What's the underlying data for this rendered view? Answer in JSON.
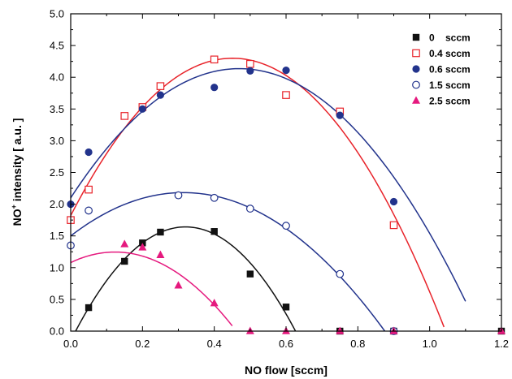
{
  "chart_data": {
    "type": "scatter",
    "xlabel": "NO flow [sccm]",
    "ylabel_main": "NO",
    "ylabel_sup": "+",
    "ylabel_rest": " intensity  [ a.u. ]",
    "xlim": [
      0.0,
      1.2
    ],
    "ylim": [
      0.0,
      5.0
    ],
    "x_ticks": [
      0.0,
      0.2,
      0.4,
      0.6,
      0.8,
      1.0,
      1.2
    ],
    "x_tick_labels": [
      "0.0",
      "0.2",
      "0.4",
      "0.6",
      "0.8",
      "1.0",
      "1.2"
    ],
    "y_ticks": [
      0.0,
      0.5,
      1.0,
      1.5,
      2.0,
      2.5,
      3.0,
      3.5,
      4.0,
      4.5,
      5.0
    ],
    "y_tick_labels": [
      "0.0",
      "0.5",
      "1.0",
      "1.5",
      "2.0",
      "2.5",
      "3.0",
      "3.5",
      "4.0",
      "4.5",
      "5.0"
    ],
    "grid": false,
    "legend_position": "top-right",
    "series": [
      {
        "name": "0    sccm",
        "marker": "square-filled",
        "color": "#111111",
        "x": [
          0.05,
          0.15,
          0.2,
          0.25,
          0.4,
          0.5,
          0.6,
          0.75,
          0.9,
          1.2
        ],
        "y": [
          0.37,
          1.1,
          1.39,
          1.56,
          1.57,
          0.9,
          0.38,
          0.0,
          0.0,
          0.0
        ],
        "fit": {
          "coef": [
            -17.5,
            11.2,
            -0.15
          ],
          "xrange": [
            0.0,
            0.63
          ]
        }
      },
      {
        "name": "0.4 sccm",
        "marker": "square-open",
        "color": "#e8232a",
        "x": [
          0.0,
          0.05,
          0.15,
          0.2,
          0.25,
          0.4,
          0.5,
          0.6,
          0.75,
          0.9
        ],
        "y": [
          1.75,
          2.23,
          3.39,
          3.53,
          3.86,
          4.28,
          4.21,
          3.72,
          3.46,
          1.67
        ],
        "fit": {
          "coef": [
            -12.2,
            11.0,
            1.82
          ],
          "xrange": [
            0.0,
            1.04
          ]
        }
      },
      {
        "name": "0.6 sccm",
        "marker": "circle-filled",
        "color": "#22338c",
        "x": [
          0.0,
          0.05,
          0.2,
          0.25,
          0.4,
          0.5,
          0.6,
          0.75,
          0.9
        ],
        "y": [
          2.0,
          2.82,
          3.5,
          3.72,
          3.84,
          4.1,
          4.11,
          3.4,
          2.04
        ],
        "fit": {
          "coef": [
            -9.23,
            8.67,
            2.1
          ],
          "xrange": [
            0.0,
            1.1
          ]
        }
      },
      {
        "name": "1.5 sccm",
        "marker": "circle-open",
        "color": "#22338c",
        "x": [
          0.0,
          0.05,
          0.3,
          0.4,
          0.5,
          0.6,
          0.75,
          0.9
        ],
        "y": [
          1.35,
          1.9,
          2.14,
          2.1,
          1.93,
          1.66,
          0.9,
          0.0
        ],
        "fit": {
          "coef": [
            -6.93,
            4.35,
            1.5
          ],
          "xrange": [
            0.0,
            0.88
          ]
        }
      },
      {
        "name": "2.5 sccm",
        "marker": "triangle-filled",
        "color": "#e5197e",
        "x": [
          0.15,
          0.2,
          0.25,
          0.3,
          0.4,
          0.5,
          0.6,
          0.75,
          0.9,
          1.2
        ],
        "y": [
          1.37,
          1.32,
          1.2,
          0.72,
          0.44,
          0.0,
          0.0,
          0.0,
          0.0,
          0.0
        ],
        "fit": {
          "coef": [
            -10.9,
            2.69,
            1.08
          ],
          "xrange": [
            0.0,
            0.45
          ]
        }
      }
    ]
  }
}
